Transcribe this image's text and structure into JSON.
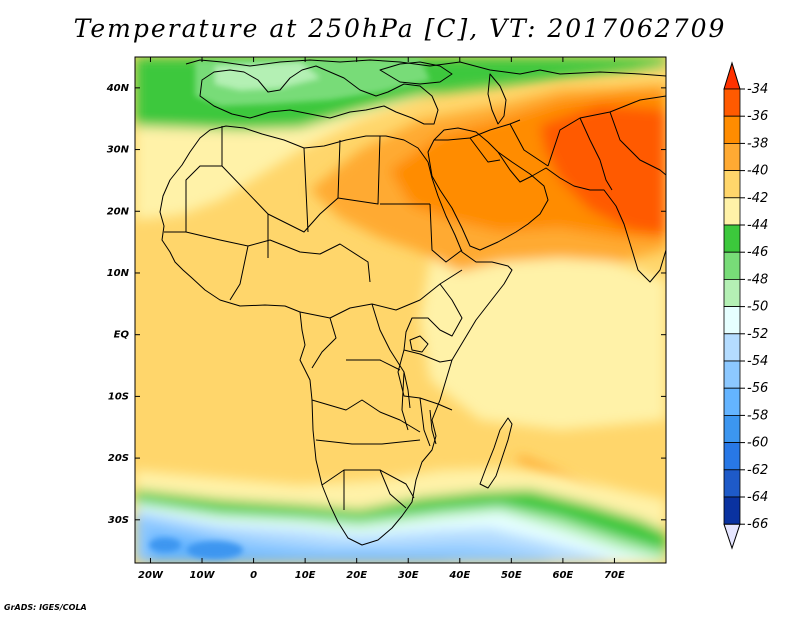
{
  "title": "Temperature at 250hPa [C], VT: 2017062709",
  "credit": "GrADS: IGES/COLA",
  "map": {
    "lon_range": [
      -23,
      80
    ],
    "lat_range": [
      -37,
      45
    ],
    "lon_ticks": [
      {
        "value": -20,
        "label": "20W"
      },
      {
        "value": -10,
        "label": "10W"
      },
      {
        "value": 0,
        "label": "0"
      },
      {
        "value": 10,
        "label": "10E"
      },
      {
        "value": 20,
        "label": "20E"
      },
      {
        "value": 30,
        "label": "30E"
      },
      {
        "value": 40,
        "label": "40E"
      },
      {
        "value": 50,
        "label": "50E"
      },
      {
        "value": 60,
        "label": "60E"
      },
      {
        "value": 70,
        "label": "70E"
      }
    ],
    "lat_ticks": [
      {
        "value": 40,
        "label": "40N"
      },
      {
        "value": 30,
        "label": "30N"
      },
      {
        "value": 20,
        "label": "20N"
      },
      {
        "value": 10,
        "label": "10N"
      },
      {
        "value": 0,
        "label": "EQ"
      },
      {
        "value": -10,
        "label": "10S"
      },
      {
        "value": -20,
        "label": "20S"
      },
      {
        "value": -30,
        "label": "30S"
      }
    ]
  },
  "colorbar": {
    "levels": [
      -34,
      -36,
      -38,
      -40,
      -42,
      -44,
      -46,
      -48,
      -50,
      -52,
      -54,
      -56,
      -58,
      -60,
      -62,
      -64,
      -66
    ],
    "colors": [
      "#ff5a00",
      "#ff8c00",
      "#ffaa33",
      "#ffd66b",
      "#fff2a8",
      "#3cc83c",
      "#78dc78",
      "#b4f0b4",
      "#e6ffff",
      "#b4dcff",
      "#8cc8ff",
      "#64b4ff",
      "#3c96f0",
      "#2878e6",
      "#1e5ac8",
      "#0a32a0",
      "#0a0a6e",
      "#e6e6ff"
    ],
    "top_arrow_color": "#ff3200",
    "bottom_arrow_color": "#e6e6ff"
  },
  "fill_regions": [
    {
      "level_color": "#ffd66b",
      "label": "background -42..-40 (most of domain)"
    }
  ]
}
